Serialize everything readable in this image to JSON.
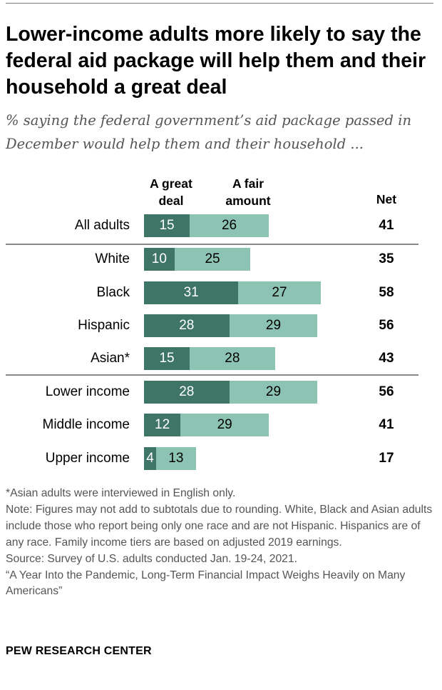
{
  "title": "Lower-income adults more likely to say the federal aid package will help them and their household a great deal",
  "subtitle": "% saying the federal government’s aid package passed in December would help them and their household ...",
  "colors": {
    "great_deal": "#3e7566",
    "fair_amount": "#8cc3b3",
    "divider": "#888888"
  },
  "chart_data": {
    "type": "bar",
    "stacked": true,
    "orientation": "horizontal",
    "headers": {
      "great": "A great deal",
      "fair": "A fair amount",
      "net": "Net"
    },
    "categories": [
      "All adults",
      "White",
      "Black",
      "Hispanic",
      "Asian*",
      "Lower income",
      "Middle income",
      "Upper income"
    ],
    "series": [
      {
        "name": "A great deal",
        "values": [
          15,
          10,
          31,
          28,
          15,
          28,
          12,
          4
        ]
      },
      {
        "name": "A fair amount",
        "values": [
          26,
          25,
          27,
          29,
          28,
          29,
          29,
          13
        ]
      }
    ],
    "net": [
      41,
      35,
      58,
      56,
      43,
      56,
      41,
      17
    ],
    "groups": [
      [
        "All adults"
      ],
      [
        "White",
        "Black",
        "Hispanic",
        "Asian*"
      ],
      [
        "Lower income",
        "Middle income",
        "Upper income"
      ]
    ],
    "xlim": [
      0,
      60
    ]
  },
  "notes": {
    "asian": "*Asian adults were interviewed in English only.",
    "note": "Note: Figures may not add to subtotals due to rounding. White, Black and Asian adults include those who report being only one race and are not Hispanic. Hispanics are of any race. Family income tiers are based on adjusted 2019 earnings.",
    "source": "Source: Survey of U.S. adults conducted Jan. 19-24, 2021.",
    "report": "“A Year Into the Pandemic, Long-Term Financial Impact Weighs Heavily on Many Americans”"
  },
  "logo": "PEW RESEARCH CENTER"
}
